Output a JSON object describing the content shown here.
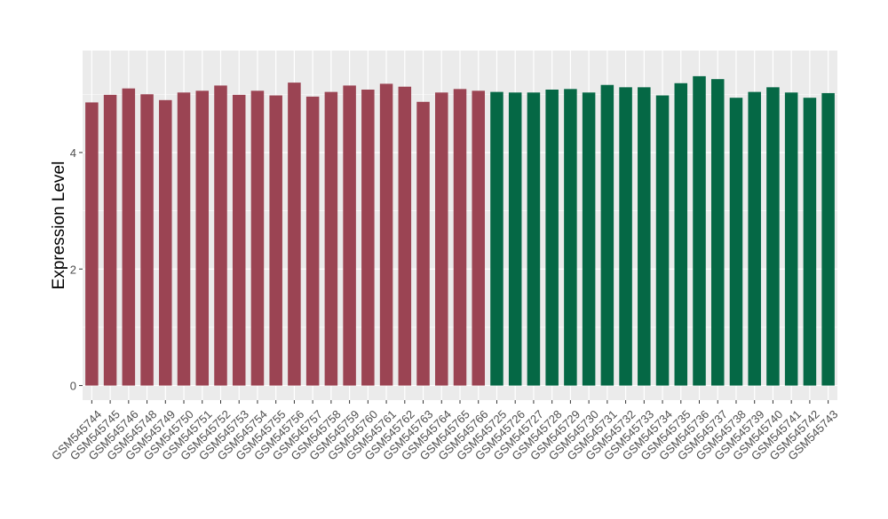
{
  "chart_data": {
    "type": "bar",
    "ylabel": "Expression Level",
    "xlabel": "",
    "title": "",
    "ylim": [
      -0.25,
      5.75
    ],
    "yticks": [
      0,
      2,
      4
    ],
    "grid": true,
    "legend": "none",
    "colors": {
      "group1": "#9B4453",
      "group2": "#056845",
      "panel": "#EBEBEB",
      "gridline": "#FFFFFF"
    },
    "categories": [
      "GSM545744",
      "GSM545745",
      "GSM545746",
      "GSM545748",
      "GSM545749",
      "GSM545750",
      "GSM545751",
      "GSM545752",
      "GSM545753",
      "GSM545754",
      "GSM545755",
      "GSM545756",
      "GSM545757",
      "GSM545758",
      "GSM545759",
      "GSM545760",
      "GSM545761",
      "GSM545762",
      "GSM545763",
      "GSM545764",
      "GSM545765",
      "GSM545766",
      "GSM545725",
      "GSM545726",
      "GSM545727",
      "GSM545728",
      "GSM545729",
      "GSM545730",
      "GSM545731",
      "GSM545732",
      "GSM545733",
      "GSM545734",
      "GSM545735",
      "GSM545736",
      "GSM545737",
      "GSM545738",
      "GSM545739",
      "GSM545740",
      "GSM545741",
      "GSM545742",
      "GSM545743"
    ],
    "values": [
      4.86,
      4.99,
      5.1,
      5.0,
      4.9,
      5.03,
      5.06,
      5.15,
      4.99,
      5.06,
      4.98,
      5.2,
      4.96,
      5.04,
      5.15,
      5.08,
      5.18,
      5.13,
      4.87,
      5.03,
      5.09,
      5.06,
      5.04,
      5.03,
      5.03,
      5.08,
      5.09,
      5.03,
      5.16,
      5.12,
      5.12,
      4.98,
      5.19,
      5.31,
      5.26,
      4.94,
      5.04,
      5.12,
      5.03,
      4.94,
      5.02
    ],
    "group_counts": [
      22,
      19
    ]
  }
}
